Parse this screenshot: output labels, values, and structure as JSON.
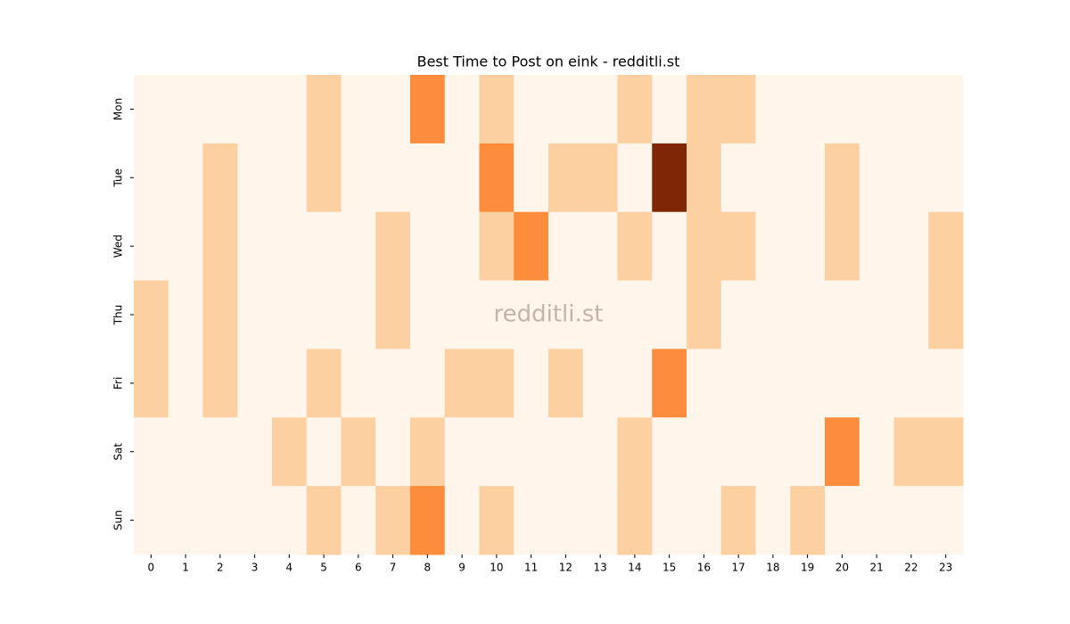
{
  "chart_data": {
    "type": "heatmap",
    "title": "Best Time to Post on eink - redditli.st",
    "watermark": "redditli.st",
    "columns": [
      0,
      1,
      2,
      3,
      4,
      5,
      6,
      7,
      8,
      9,
      10,
      11,
      12,
      13,
      14,
      15,
      16,
      17,
      18,
      19,
      20,
      21,
      22,
      23
    ],
    "rows": [
      "Mon",
      "Tue",
      "Wed",
      "Thu",
      "Fri",
      "Sat",
      "Sun"
    ],
    "values": [
      [
        0,
        0,
        0,
        0,
        0,
        1,
        0,
        0,
        2,
        0,
        1,
        0,
        0,
        0,
        1,
        0,
        1,
        1,
        0,
        0,
        0,
        0,
        0,
        0
      ],
      [
        0,
        0,
        1,
        0,
        0,
        1,
        0,
        0,
        0,
        0,
        2,
        0,
        1,
        1,
        0,
        3,
        1,
        0,
        0,
        0,
        1,
        0,
        0,
        0
      ],
      [
        0,
        0,
        1,
        0,
        0,
        0,
        0,
        1,
        0,
        0,
        1,
        2,
        0,
        0,
        1,
        0,
        1,
        1,
        0,
        0,
        1,
        0,
        0,
        1
      ],
      [
        1,
        0,
        1,
        0,
        0,
        0,
        0,
        1,
        0,
        0,
        0,
        0,
        0,
        0,
        0,
        0,
        1,
        0,
        0,
        0,
        0,
        0,
        0,
        1
      ],
      [
        1,
        0,
        1,
        0,
        0,
        1,
        0,
        0,
        0,
        1,
        1,
        0,
        1,
        0,
        0,
        2,
        0,
        0,
        0,
        0,
        0,
        0,
        0,
        0
      ],
      [
        0,
        0,
        0,
        0,
        1,
        0,
        1,
        0,
        1,
        0,
        0,
        0,
        0,
        0,
        1,
        0,
        0,
        0,
        0,
        0,
        2,
        0,
        1,
        1
      ],
      [
        0,
        0,
        0,
        0,
        0,
        1,
        0,
        1,
        2,
        0,
        1,
        0,
        0,
        0,
        1,
        0,
        0,
        1,
        0,
        1,
        0,
        0,
        0,
        0
      ]
    ],
    "colormap": [
      "#fff5eb",
      "#fdd0a2",
      "#fd8d3c",
      "#7f2704"
    ]
  }
}
